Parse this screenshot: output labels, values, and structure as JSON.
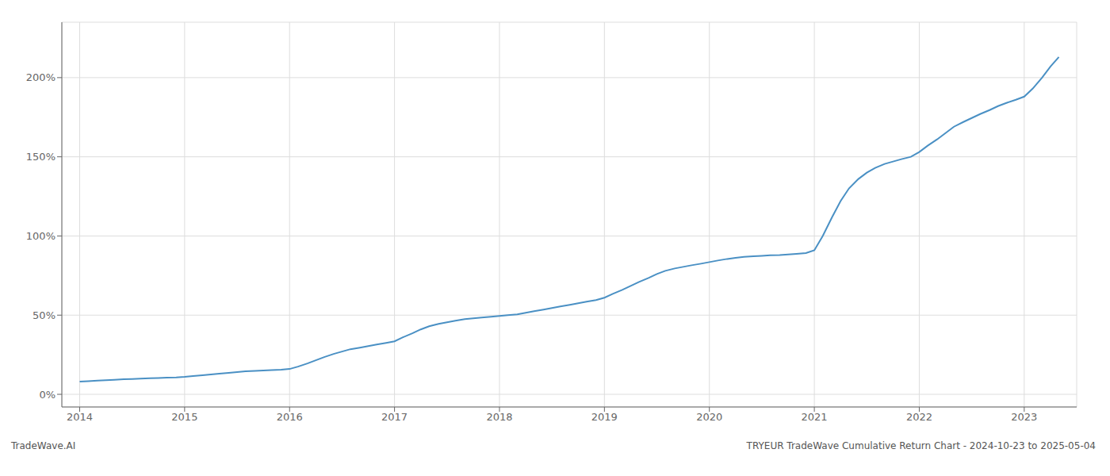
{
  "chart_data": {
    "type": "line",
    "title": "TRYEUR TradeWave Cumulative Return Chart - 2024-10-23 to 2025-05-04",
    "annotations": [
      "TradeWave.AI"
    ],
    "color": "#4a90c4",
    "grid": true,
    "x": [
      2014.0,
      2014.08,
      2014.17,
      2014.25,
      2014.33,
      2014.42,
      2014.5,
      2014.58,
      2014.67,
      2014.75,
      2014.83,
      2014.92,
      2015.0,
      2015.08,
      2015.17,
      2015.25,
      2015.33,
      2015.42,
      2015.5,
      2015.58,
      2015.67,
      2015.75,
      2015.83,
      2015.92,
      2016.0,
      2016.08,
      2016.17,
      2016.25,
      2016.33,
      2016.42,
      2016.5,
      2016.58,
      2016.67,
      2016.75,
      2016.83,
      2016.92,
      2017.0,
      2017.08,
      2017.17,
      2017.25,
      2017.33,
      2017.42,
      2017.5,
      2017.58,
      2017.67,
      2017.75,
      2017.83,
      2017.92,
      2018.0,
      2018.08,
      2018.17,
      2018.25,
      2018.33,
      2018.42,
      2018.5,
      2018.58,
      2018.67,
      2018.75,
      2018.83,
      2018.92,
      2019.0,
      2019.08,
      2019.17,
      2019.25,
      2019.33,
      2019.42,
      2019.5,
      2019.58,
      2019.67,
      2019.75,
      2019.83,
      2019.92,
      2020.0,
      2020.08,
      2020.17,
      2020.25,
      2020.33,
      2020.42,
      2020.5,
      2020.58,
      2020.67,
      2020.75,
      2020.83,
      2020.92,
      2021.0,
      2021.08,
      2021.17,
      2021.25,
      2021.33,
      2021.42,
      2021.5,
      2021.58,
      2021.67,
      2021.75,
      2021.83,
      2021.92,
      2022.0,
      2022.08,
      2022.17,
      2022.25,
      2022.33,
      2022.42,
      2022.5,
      2022.58,
      2022.67,
      2022.75,
      2022.83,
      2022.92,
      2023.0,
      2023.08,
      2023.17,
      2023.25,
      2023.33
    ],
    "values": [
      8.0,
      8.3,
      8.6,
      8.9,
      9.2,
      9.5,
      9.7,
      9.9,
      10.1,
      10.3,
      10.5,
      10.7,
      11.0,
      11.5,
      12.0,
      12.5,
      13.0,
      13.5,
      14.0,
      14.5,
      14.8,
      15.1,
      15.3,
      15.6,
      16.0,
      17.5,
      19.5,
      21.5,
      23.5,
      25.5,
      27.0,
      28.5,
      29.5,
      30.5,
      31.5,
      32.5,
      33.5,
      36.0,
      38.5,
      41.0,
      43.0,
      44.5,
      45.5,
      46.5,
      47.5,
      48.0,
      48.5,
      49.0,
      49.5,
      50.0,
      50.5,
      51.5,
      52.5,
      53.5,
      54.5,
      55.5,
      56.5,
      57.5,
      58.5,
      59.5,
      61.0,
      63.5,
      66.0,
      68.5,
      71.0,
      73.5,
      76.0,
      78.0,
      79.5,
      80.5,
      81.5,
      82.5,
      83.5,
      84.5,
      85.5,
      86.2,
      86.8,
      87.2,
      87.5,
      87.8,
      88.0,
      88.3,
      88.7,
      89.2,
      91.0,
      100.0,
      112.0,
      122.0,
      130.0,
      136.0,
      140.0,
      143.0,
      145.5,
      147.0,
      148.5,
      150.0,
      153.0,
      157.0,
      161.0,
      165.0,
      169.0,
      172.0,
      174.5,
      177.0,
      179.5,
      182.0,
      184.0,
      186.0,
      188.0,
      193.0,
      200.0,
      207.0,
      213.0
    ],
    "xlim": [
      2013.83,
      2023.5
    ],
    "xticks": [
      2014,
      2015,
      2016,
      2017,
      2018,
      2019,
      2020,
      2021,
      2022,
      2023
    ],
    "ylim": [
      -8,
      235
    ],
    "yticks": [
      {
        "value": 0,
        "label": "0%"
      },
      {
        "value": 50,
        "label": "50%"
      },
      {
        "value": 100,
        "label": "100%"
      },
      {
        "value": 150,
        "label": "150%"
      },
      {
        "value": 200,
        "label": "200%"
      }
    ]
  }
}
